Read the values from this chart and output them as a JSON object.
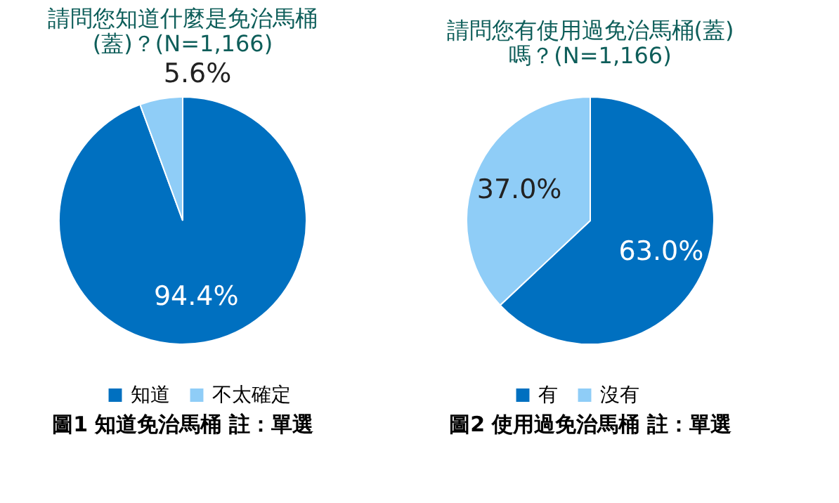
{
  "chart_data": [
    {
      "type": "pie",
      "title": "請問您知道什麼是免治馬桶\n(蓋)？(N=1,166)",
      "categories": [
        "知道",
        "不太確定"
      ],
      "values": [
        94.4,
        5.6
      ],
      "value_labels": [
        "94.4%",
        "5.6%"
      ],
      "colors": [
        "#0070c0",
        "#8fcdf7"
      ],
      "legend": "bottom",
      "annotations": [
        "圖1 知道免治馬桶 註：單選"
      ]
    },
    {
      "type": "pie",
      "title": "請問您有使用過免治馬桶(蓋)\n嗎？(N=1,166)",
      "categories": [
        "有",
        "沒有"
      ],
      "values": [
        63.0,
        37.0
      ],
      "value_labels": [
        "63.0%",
        "37.0%"
      ],
      "colors": [
        "#0070c0",
        "#8fcdf7"
      ],
      "legend": "bottom",
      "annotations": [
        "圖2 使用過免治馬桶 註：單選"
      ]
    }
  ]
}
